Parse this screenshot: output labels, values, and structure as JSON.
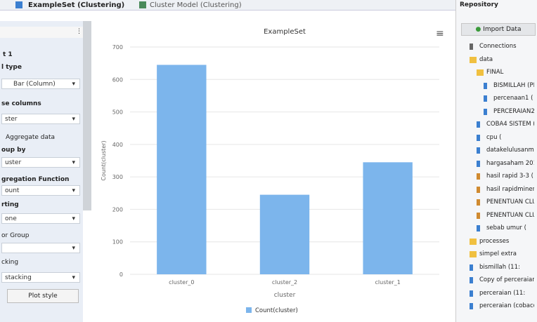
{
  "tabs": [
    "ExampleSet (Clustering)",
    "Cluster Model (Clustering)"
  ],
  "settings": {
    "heading": "t 1",
    "plot_type_label": "l type",
    "plot_type": "Bar (Column)",
    "columns_label": "se columns",
    "columns": "ster",
    "aggregate": "Aggregate data",
    "group_by_label": "oup by",
    "group_by": "uster",
    "function_label": "gregation Function",
    "function": "ount",
    "sorting_label": "rting",
    "sorting": "one",
    "color_group_label": "or Group",
    "stacking_label": "cking",
    "stacking": "stacking",
    "plot_style": "Plot style"
  },
  "repository": {
    "title": "Repository",
    "import": "Import Data",
    "items": [
      "Connections",
      "data",
      "FINAL",
      "BISMILLAH (PE",
      "percenaan1 (",
      "PERCERAIAN2",
      "COBA4 SISTEM (",
      "cpu (",
      "datakelulusanmahas",
      "hargasaham 201",
      "hasil rapid 3-3 (",
      "hasil rapidminer (",
      "PENENTUAN CLU",
      "PENENTUAN CLU",
      "sebab umur (",
      "processes",
      "simpel extra",
      "bismillah (11:",
      "Copy of perceraian_k",
      "perceraian (11:",
      "perceraian (cobacoba"
    ]
  },
  "chart_data": {
    "type": "bar",
    "title": "ExampleSet",
    "categories": [
      "cluster_0",
      "cluster_2",
      "cluster_1"
    ],
    "series": [
      {
        "name": "Count(cluster)",
        "color": "#7cb5ec",
        "values": [
          645,
          245,
          345
        ]
      }
    ],
    "xlabel": "cluster",
    "ylabel": "Count(cluster)",
    "ylim": [
      0,
      700
    ],
    "yticks": [
      0,
      100,
      200,
      300,
      400,
      500,
      600,
      700
    ],
    "grid": true,
    "legend": "bottom"
  }
}
